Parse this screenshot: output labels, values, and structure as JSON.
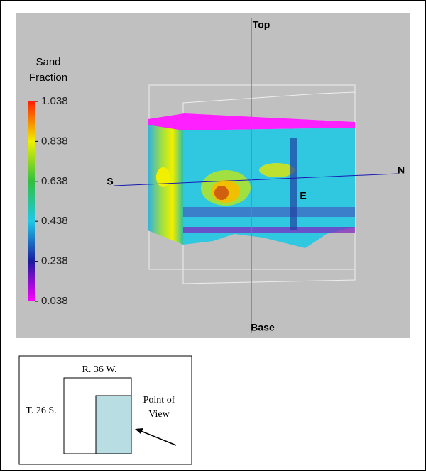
{
  "colorbar": {
    "title": [
      "Sand",
      "Fraction"
    ],
    "range": [
      0.038,
      1.038
    ],
    "ticks": [
      1.038,
      0.838,
      0.638,
      0.438,
      0.238,
      0.038
    ]
  },
  "axes": {
    "top": "Top",
    "base": "Base",
    "south": "S",
    "north": "N",
    "east": "E"
  },
  "inset": {
    "range_label": "R. 36 W.",
    "township_label": "T. 26 S.",
    "view_label": [
      "Point of",
      "View"
    ]
  }
}
